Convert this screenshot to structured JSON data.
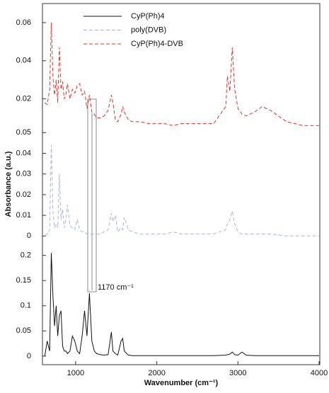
{
  "chart_data": [
    {
      "type": "line",
      "ylim": [
        0.005,
        0.07
      ],
      "yticks": [
        0.02,
        0.04,
        0.06
      ],
      "series": [
        {
          "name": "CyP(Ph)4-DVB",
          "color": "#e8302a",
          "linestyle": "dashed",
          "x": [
            620,
            650,
            680,
            700,
            720,
            740,
            760,
            780,
            800,
            820,
            840,
            860,
            880,
            900,
            930,
            960,
            990,
            1020,
            1050,
            1080,
            1110,
            1140,
            1170,
            1200,
            1230,
            1260,
            1300,
            1350,
            1400,
            1440,
            1460,
            1490,
            1520,
            1560,
            1580,
            1600,
            1650,
            1700,
            1800,
            1900,
            2000,
            2100,
            2200,
            2300,
            2500,
            2700,
            2850,
            2870,
            2900,
            2930,
            2960,
            3000,
            3050,
            3100,
            3200,
            3300,
            3400,
            3600,
            3800,
            4000
          ],
          "values": [
            0.018,
            0.017,
            0.025,
            0.06,
            0.032,
            0.022,
            0.03,
            0.018,
            0.047,
            0.025,
            0.029,
            0.02,
            0.022,
            0.028,
            0.02,
            0.025,
            0.023,
            0.027,
            0.028,
            0.022,
            0.024,
            0.015,
            0.022,
            0.013,
            0.012,
            0.01,
            0.01,
            0.011,
            0.014,
            0.022,
            0.018,
            0.009,
            0.008,
            0.012,
            0.016,
            0.013,
            0.009,
            0.008,
            0.008,
            0.007,
            0.007,
            0.007,
            0.006,
            0.007,
            0.007,
            0.007,
            0.016,
            0.032,
            0.024,
            0.047,
            0.025,
            0.015,
            0.012,
            0.011,
            0.013,
            0.016,
            0.014,
            0.008,
            0.006,
            0.006
          ]
        }
      ]
    },
    {
      "type": "line",
      "ylim": [
        -0.004,
        0.0525
      ],
      "yticks": [
        0,
        0.01,
        0.02,
        0.03,
        0.04,
        0.05
      ],
      "ylabel": "Absorbance (a.u.)",
      "series": [
        {
          "name": "poly(DVB)",
          "color": "#a9b4e6",
          "linestyle": "dashed",
          "x": [
            620,
            650,
            680,
            700,
            720,
            740,
            760,
            780,
            800,
            820,
            840,
            860,
            880,
            900,
            930,
            960,
            990,
            1020,
            1050,
            1080,
            1110,
            1140,
            1170,
            1200,
            1230,
            1260,
            1300,
            1350,
            1400,
            1440,
            1460,
            1490,
            1520,
            1560,
            1580,
            1600,
            1650,
            1700,
            1800,
            1900,
            2000,
            2100,
            2200,
            2300,
            2500,
            2700,
            2850,
            2870,
            2900,
            2930,
            2960,
            3000,
            3050,
            3100,
            3200,
            3300,
            3400,
            3600,
            3800,
            4000
          ],
          "values": [
            0,
            0.001,
            0.003,
            0.044,
            0.012,
            0.004,
            0.006,
            0.004,
            0.03,
            0.008,
            0.013,
            0.004,
            0.008,
            0.015,
            0.005,
            0.004,
            0.003,
            0.008,
            0.003,
            0.002,
            0.002,
            0.001,
            0.001,
            0.001,
            0.001,
            0.001,
            0.001,
            0.002,
            0.003,
            0.011,
            0.007,
            0.01,
            0.002,
            0.004,
            0.003,
            0.009,
            0.003,
            0.002,
            0.001,
            0.001,
            0.001,
            0.001,
            0.002,
            0.001,
            0.001,
            0.001,
            0.003,
            0.006,
            0.008,
            0.012,
            0.006,
            0.002,
            0.001,
            0.001,
            0.001,
            0.001,
            0.001,
            0,
            0,
            0
          ]
        }
      ]
    },
    {
      "type": "line",
      "ylim": [
        -0.017,
        0.222
      ],
      "yticks": [
        0,
        0.05,
        0.1,
        0.15,
        0.2
      ],
      "xlim": [
        600,
        4000
      ],
      "xticks": [
        1000,
        2000,
        3000,
        4000
      ],
      "xlabel": "Wavenumber (cm⁻¹)",
      "annotation": "1170 cm⁻¹",
      "series": [
        {
          "name": "CyP(Ph)4",
          "color": "#111111",
          "linestyle": "solid",
          "x": [
            620,
            650,
            680,
            700,
            720,
            740,
            760,
            780,
            800,
            820,
            840,
            860,
            880,
            900,
            930,
            960,
            990,
            1020,
            1050,
            1080,
            1110,
            1140,
            1170,
            1200,
            1230,
            1260,
            1300,
            1350,
            1400,
            1440,
            1460,
            1490,
            1520,
            1560,
            1580,
            1600,
            1650,
            1700,
            1800,
            1900,
            2000,
            2100,
            2200,
            2300,
            2500,
            2700,
            2850,
            2870,
            2900,
            2930,
            2960,
            3000,
            3050,
            3100,
            3200,
            3300,
            3400,
            3600,
            3800,
            4000
          ],
          "values": [
            0,
            0.03,
            0.01,
            0.205,
            0.12,
            0.06,
            0.1,
            0.04,
            0.08,
            0.09,
            0.02,
            0.01,
            0.01,
            0.005,
            0.01,
            0.04,
            0.03,
            0.01,
            0.005,
            0.04,
            0.09,
            0.04,
            0.125,
            0.03,
            0.01,
            0.005,
            0.003,
            0.002,
            0.003,
            0.048,
            0.01,
            0.005,
            0.002,
            0.03,
            0.035,
            0.01,
            0.002,
            0.001,
            0.001,
            0.001,
            0.001,
            0.001,
            0.001,
            0.001,
            0.001,
            0.001,
            0.002,
            0.003,
            0.004,
            0.008,
            0.003,
            0.002,
            0.008,
            0.002,
            0.001,
            0.001,
            0.001,
            0.001,
            0.001,
            0.001
          ]
        }
      ]
    }
  ]
}
